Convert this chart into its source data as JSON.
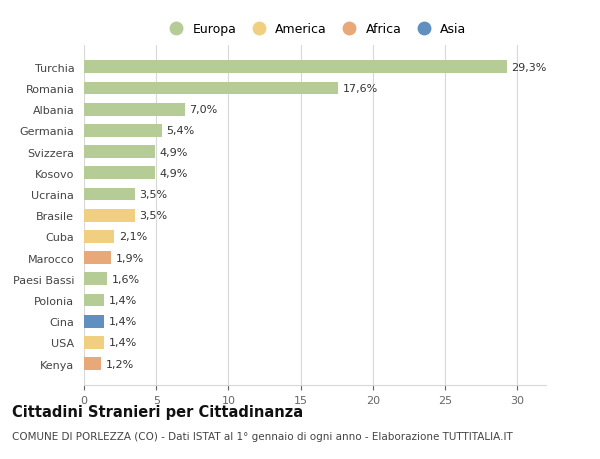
{
  "countries": [
    "Turchia",
    "Romania",
    "Albania",
    "Germania",
    "Svizzera",
    "Kosovo",
    "Ucraina",
    "Brasile",
    "Cuba",
    "Marocco",
    "Paesi Bassi",
    "Polonia",
    "Cina",
    "USA",
    "Kenya"
  ],
  "values": [
    29.3,
    17.6,
    7.0,
    5.4,
    4.9,
    4.9,
    3.5,
    3.5,
    2.1,
    1.9,
    1.6,
    1.4,
    1.4,
    1.4,
    1.2
  ],
  "labels": [
    "29,3%",
    "17,6%",
    "7,0%",
    "5,4%",
    "4,9%",
    "4,9%",
    "3,5%",
    "3,5%",
    "2,1%",
    "1,9%",
    "1,6%",
    "1,4%",
    "1,4%",
    "1,4%",
    "1,2%"
  ],
  "continents": [
    "Europa",
    "Europa",
    "Europa",
    "Europa",
    "Europa",
    "Europa",
    "Europa",
    "America",
    "America",
    "Africa",
    "Europa",
    "Europa",
    "Asia",
    "America",
    "Africa"
  ],
  "continent_colors": {
    "Europa": "#b5cc96",
    "America": "#f0d080",
    "Africa": "#e8a878",
    "Asia": "#6090c0"
  },
  "legend_entries": [
    "Europa",
    "America",
    "Africa",
    "Asia"
  ],
  "xlim": [
    0,
    32
  ],
  "xticks": [
    0,
    5,
    10,
    15,
    20,
    25,
    30
  ],
  "title": "Cittadini Stranieri per Cittadinanza",
  "subtitle": "COMUNE DI PORLEZZA (CO) - Dati ISTAT al 1° gennaio di ogni anno - Elaborazione TUTTITALIA.IT",
  "background_color": "#ffffff",
  "grid_color": "#d8d8d8",
  "label_fontsize": 8,
  "tick_fontsize": 8,
  "legend_fontsize": 9,
  "title_fontsize": 10.5,
  "subtitle_fontsize": 7.5
}
